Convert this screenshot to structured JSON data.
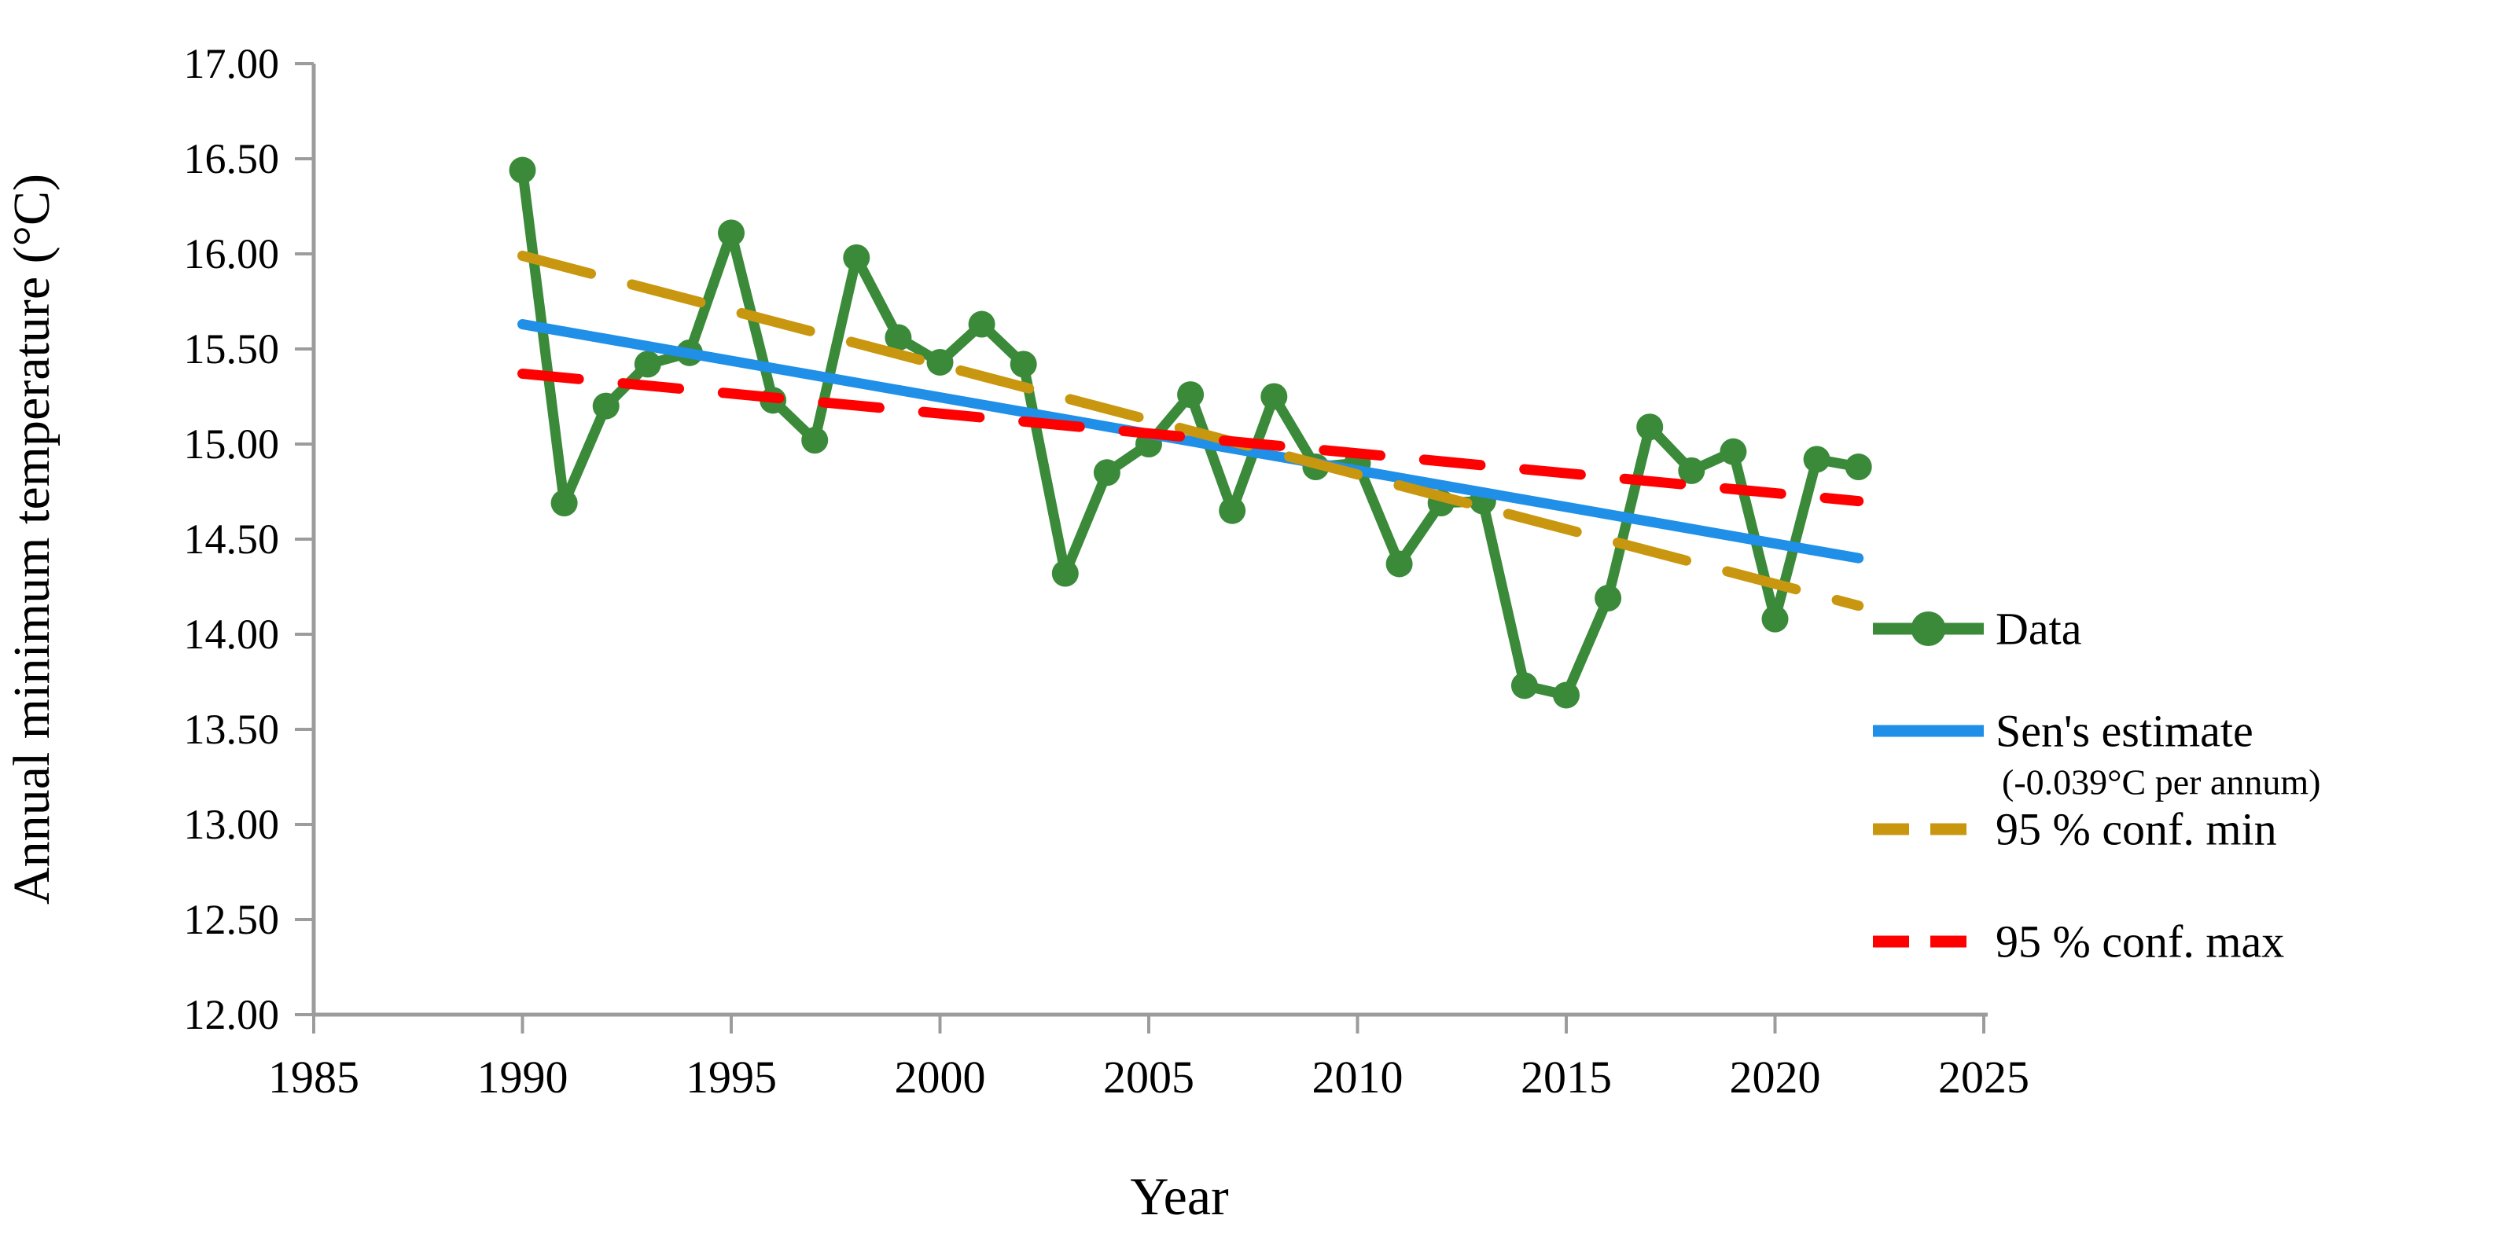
{
  "chart_data": {
    "type": "line",
    "title": "",
    "xlabel": "Year",
    "ylabel": "Annual minimum temperature (°C)",
    "xlim": [
      1985,
      2025
    ],
    "ylim": [
      12.0,
      17.0
    ],
    "grid": false,
    "legend_position": "right",
    "axis_color": "#9C9C9C",
    "text_color": "#000000",
    "x_ticks": [
      1985,
      1990,
      1995,
      2000,
      2005,
      2010,
      2015,
      2020,
      2025
    ],
    "x_tick_labels": [
      "1985",
      "1990",
      "1995",
      "2000",
      "2005",
      "2010",
      "2015",
      "2020",
      "2025"
    ],
    "y_ticks": [
      17.0,
      16.5,
      16.0,
      15.5,
      15.0,
      14.5,
      14.0,
      13.5,
      13.0,
      12.5,
      12.0
    ],
    "y_tick_labels": [
      "17.00",
      "16.50",
      "16.00",
      "15.50",
      "15.00",
      "14.50",
      "14.00",
      "13.50",
      "13.00",
      "12.50",
      "12.00"
    ],
    "series": [
      {
        "name": "Data",
        "style": "solid",
        "marker": "circle",
        "color": "#3A8A3A",
        "x": [
          1990,
          1991,
          1992,
          1993,
          1994,
          1995,
          1996,
          1997,
          1998,
          1999,
          2000,
          2001,
          2002,
          2003,
          2004,
          2005,
          2006,
          2007,
          2008,
          2009,
          2010,
          2011,
          2012,
          2013,
          2014,
          2015,
          2016,
          2017,
          2018,
          2019,
          2020,
          2021,
          2022
        ],
        "values": [
          16.44,
          14.69,
          15.2,
          15.42,
          15.48,
          16.11,
          15.23,
          15.02,
          15.98,
          15.56,
          15.43,
          15.63,
          15.42,
          14.32,
          14.85,
          15.0,
          15.26,
          14.65,
          15.25,
          14.88,
          14.9,
          14.37,
          14.69,
          14.7,
          13.73,
          13.68,
          14.19,
          15.09,
          14.86,
          14.96,
          14.08,
          14.92,
          14.88
        ]
      },
      {
        "name": "Sen's estimate",
        "sublabel": "(-0.039°C per annum)",
        "style": "solid",
        "marker": "none",
        "color": "#1F8FE8",
        "x": [
          1990,
          2022
        ],
        "values": [
          15.63,
          14.4
        ]
      },
      {
        "name": "95 % conf. min",
        "style": "dashed",
        "marker": "none",
        "color": "#C9970F",
        "x": [
          1990,
          2022
        ],
        "values": [
          15.99,
          14.15
        ]
      },
      {
        "name": "95 % conf. max",
        "style": "dashed",
        "marker": "none",
        "color": "#FF0000",
        "x": [
          1990,
          2022
        ],
        "values": [
          15.37,
          14.7
        ]
      }
    ]
  }
}
